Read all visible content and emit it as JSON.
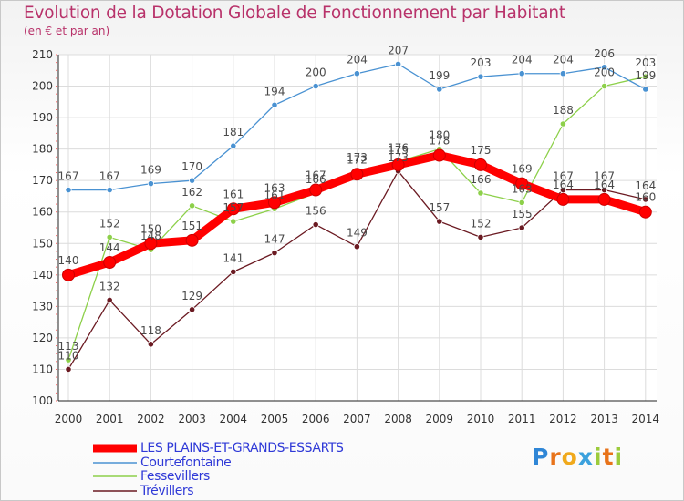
{
  "title": "Evolution de la Dotation Globale de Fonctionnement par Habitant",
  "subtitle": "(en € et par an)",
  "brand": {
    "letters": [
      "P",
      "r",
      "o",
      "x",
      "i",
      "t",
      "i"
    ],
    "colors": [
      "#2f86d6",
      "#e8731a",
      "#f0a91c",
      "#3ba1dd",
      "#9ccb3b",
      "#e8731a",
      "#9ccb3b"
    ]
  },
  "chart_data": {
    "type": "line",
    "title": "Evolution de la Dotation Globale de Fonctionnement par Habitant",
    "subtitle": "(en € et par an)",
    "xlabel": "",
    "ylabel": "",
    "ylim": [
      100,
      210
    ],
    "yticks": [
      "100",
      "110",
      "120",
      "130",
      "140",
      "150",
      "160",
      "170",
      "180",
      "190",
      "200",
      "210"
    ],
    "x": [
      "2000",
      "2001",
      "2002",
      "2003",
      "2004",
      "2005",
      "2006",
      "2007",
      "2008",
      "2009",
      "2010",
      "2011",
      "2012",
      "2013",
      "2014"
    ],
    "grid": true,
    "legend_position": "bottom-left",
    "series": [
      {
        "name": "Trévillers",
        "color": "#6b1a22",
        "values": [
          110,
          132,
          118,
          129,
          141,
          147,
          156,
          149,
          173,
          157,
          152,
          155,
          167,
          167,
          164
        ],
        "labels": [
          "110",
          "132",
          "118",
          "129",
          "141",
          "147",
          "156",
          "149",
          "173",
          "157",
          "152",
          "155",
          "167",
          "167",
          "164"
        ]
      },
      {
        "name": "Fessevillers",
        "color": "#8dd04a",
        "values": [
          113,
          152,
          148,
          162,
          157,
          161,
          166,
          173,
          176,
          180,
          166,
          163,
          188,
          200,
          203
        ],
        "labels": [
          "113",
          "152",
          "148",
          "162",
          "157",
          "161",
          "166",
          "173",
          "176",
          "180",
          "166",
          "163",
          "188",
          "200",
          "203"
        ]
      },
      {
        "name": "Courtefontaine",
        "color": "#4a92d2",
        "values": [
          167,
          167,
          169,
          170,
          181,
          194,
          200,
          204,
          207,
          199,
          203,
          204,
          204,
          206,
          199
        ],
        "labels": [
          "167",
          "167",
          "169",
          "170",
          "181",
          "194",
          "200",
          "204",
          "207",
          "199",
          "203",
          "204",
          "204",
          "206",
          "199"
        ]
      },
      {
        "name": "LES PLAINS-ET-GRANDS-ESSARTS",
        "color": "#ff0000",
        "values": [
          140,
          144,
          150,
          151,
          161,
          163,
          167,
          172,
          175,
          178,
          175,
          169,
          164,
          164,
          160
        ],
        "labels": [
          "140",
          "144",
          "150",
          "151",
          "161",
          "163",
          "167",
          "172",
          "175",
          "178",
          "175",
          "169",
          "164",
          "164",
          "160"
        ]
      }
    ],
    "legend": [
      "LES PLAINS-ET-GRANDS-ESSARTS",
      "Courtefontaine",
      "Fessevillers",
      "Trévillers"
    ]
  }
}
